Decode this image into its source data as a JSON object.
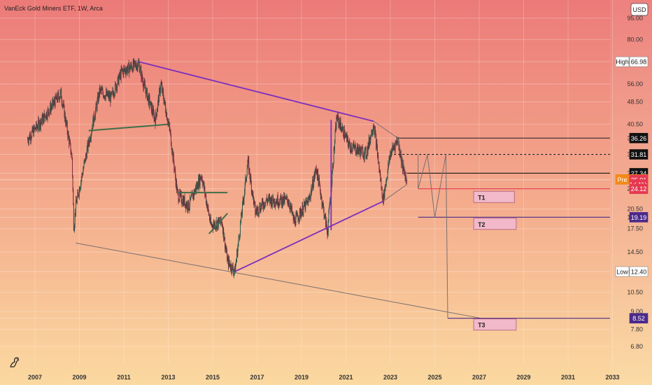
{
  "title": "VanEck Gold Miners ETF, 1W, Arca",
  "currency_button": "USD",
  "colors": {
    "bg_top": "#ec7a78",
    "bg_bottom": "#fbd9a0",
    "pattern_line": "#7b2fbe",
    "support_line": "#3f6f4a",
    "guide_line": "#7a6f6f",
    "candle_up": "#2c5a4a",
    "candle_down": "#7a2a3a",
    "price_red": "#e53950",
    "target_box": "#f1b9c9",
    "target_border": "#b05a7a",
    "target_text": "#4a1a6a"
  },
  "logo_icon": "tradingview-logo-icon",
  "chart_data": {
    "type": "candlestick",
    "title": "VanEck Gold Miners ETF, 1W, Arca",
    "x_ticks": [
      "2007",
      "2009",
      "2011",
      "2013",
      "2015",
      "2017",
      "2019",
      "2021",
      "2023",
      "2025",
      "2027",
      "2029",
      "2031",
      "2033"
    ],
    "y_scale": "log",
    "y_ticks": [
      "95.00",
      "80.00",
      "66.98",
      "56.00",
      "48.50",
      "40.50",
      "36.26",
      "31.81",
      "27.34",
      "26.01",
      "25.91",
      "24.12",
      "20.50",
      "19.19",
      "17.50",
      "14.50",
      "12.40",
      "10.50",
      "9.00",
      "8.52",
      "7.80",
      "6.80"
    ],
    "y_range": [
      5.9,
      110
    ],
    "price_labels": [
      {
        "label": "High",
        "value": "66.98",
        "price": 66.98,
        "style": "white"
      },
      {
        "label": "",
        "value": "36.26",
        "price": 36.26,
        "style": "black"
      },
      {
        "label": "",
        "value": "31.81",
        "price": 31.81,
        "style": "black"
      },
      {
        "label": "",
        "value": "27.34",
        "price": 27.34,
        "style": "black"
      },
      {
        "label": "Pre",
        "value": "26.01",
        "price": 26.01,
        "style": "orange"
      },
      {
        "label": "",
        "value": "25.91",
        "price": 25.91,
        "style": "red"
      },
      {
        "label": "",
        "value": "1d 11h",
        "price": 24.95,
        "style": "red"
      },
      {
        "label": "",
        "value": "24.12",
        "price": 24.12,
        "style": "red"
      },
      {
        "label": "",
        "value": "19.19",
        "price": 19.19,
        "style": "purple"
      },
      {
        "label": "Low",
        "value": "12.40",
        "price": 12.4,
        "style": "white"
      },
      {
        "label": "",
        "value": "8.52",
        "price": 8.52,
        "style": "purple"
      }
    ],
    "price_anchors": [
      {
        "date": "2006-09",
        "close": 36
      },
      {
        "date": "2007-06",
        "close": 43
      },
      {
        "date": "2008-03",
        "close": 52
      },
      {
        "date": "2008-09",
        "close": 31
      },
      {
        "date": "2008-10",
        "close": 17.5
      },
      {
        "date": "2008-11",
        "close": 21
      },
      {
        "date": "2009-06",
        "close": 35
      },
      {
        "date": "2009-12",
        "close": 53
      },
      {
        "date": "2010-06",
        "close": 50
      },
      {
        "date": "2010-12",
        "close": 62
      },
      {
        "date": "2011-09",
        "close": 66
      },
      {
        "date": "2011-12",
        "close": 55
      },
      {
        "date": "2012-06",
        "close": 42
      },
      {
        "date": "2012-09",
        "close": 56
      },
      {
        "date": "2013-02",
        "close": 38
      },
      {
        "date": "2013-06",
        "close": 23
      },
      {
        "date": "2013-12",
        "close": 21
      },
      {
        "date": "2014-07",
        "close": 27
      },
      {
        "date": "2014-12",
        "close": 18
      },
      {
        "date": "2015-06",
        "close": 18.5
      },
      {
        "date": "2015-09",
        "close": 13.5
      },
      {
        "date": "2016-01",
        "close": 12.4
      },
      {
        "date": "2016-08",
        "close": 30
      },
      {
        "date": "2016-12",
        "close": 20
      },
      {
        "date": "2017-06",
        "close": 22
      },
      {
        "date": "2018-06",
        "close": 22
      },
      {
        "date": "2018-09",
        "close": 18.5
      },
      {
        "date": "2019-05",
        "close": 22
      },
      {
        "date": "2019-09",
        "close": 28.5
      },
      {
        "date": "2020-03",
        "close": 17
      },
      {
        "date": "2020-08",
        "close": 43
      },
      {
        "date": "2021-03",
        "close": 34
      },
      {
        "date": "2021-12",
        "close": 32
      },
      {
        "date": "2022-04",
        "close": 41
      },
      {
        "date": "2022-09",
        "close": 22
      },
      {
        "date": "2023-01",
        "close": 32
      },
      {
        "date": "2023-05",
        "close": 36
      },
      {
        "date": "2023-08",
        "close": 28
      },
      {
        "date": "2023-10",
        "close": 25.9
      }
    ],
    "trend_lines": [
      {
        "name": "upper-wedge-line",
        "style": "pattern",
        "from": {
          "date": "2011-09",
          "price": 66.98
        },
        "to": {
          "date": "2022-04",
          "price": 41.5
        }
      },
      {
        "name": "lower-wedge-line",
        "style": "pattern",
        "from": {
          "date": "2016-01",
          "price": 12.4
        },
        "to": {
          "date": "2022-09",
          "price": 21.8
        }
      },
      {
        "name": "mid-wedge-line",
        "style": "pattern",
        "from": {
          "date": "2020-05",
          "price": 17.3
        },
        "to": {
          "date": "2020-05",
          "price": 42
        }
      },
      {
        "name": "support-line-2010",
        "style": "support",
        "from": {
          "date": "2009-06",
          "price": 38.5
        },
        "to": {
          "date": "2013-01",
          "price": 40.5
        }
      },
      {
        "name": "support-line-2013",
        "style": "support",
        "from": {
          "date": "2013-06",
          "price": 23.4
        },
        "to": {
          "date": "2015-09",
          "price": 23.4
        }
      },
      {
        "name": "support-line-2015",
        "style": "support",
        "from": {
          "date": "2014-11",
          "price": 16.8
        },
        "to": {
          "date": "2015-09",
          "price": 19.8
        }
      },
      {
        "name": "long-support-line",
        "style": "guide",
        "from": {
          "date": "2008-11",
          "price": 15.6
        },
        "to": {
          "date": "2027-02",
          "price": 8.52
        }
      },
      {
        "name": "connector-line-1",
        "style": "guide",
        "from": {
          "date": "2022-04",
          "price": 41.5
        },
        "to": {
          "date": "2023-05",
          "price": 36.26
        }
      },
      {
        "name": "connector-line-2",
        "style": "guide",
        "from": {
          "date": "2022-09",
          "price": 21.8
        },
        "to": {
          "date": "2023-10",
          "price": 25.0
        }
      },
      {
        "name": "wedge-tip-line",
        "style": "guide",
        "from": {
          "date": "2023-05",
          "price": 36.26
        },
        "to": {
          "date": "2023-10",
          "price": 26.0
        }
      }
    ],
    "horizontal_levels": [
      {
        "name": "level-36-26",
        "price": 36.26,
        "from": "2023-05",
        "color": "#1a1a1a",
        "dashed": false
      },
      {
        "name": "level-31-81",
        "price": 31.81,
        "from": "2023-03",
        "color": "#1a1a1a",
        "dashed": true
      },
      {
        "name": "level-27-34",
        "price": 27.34,
        "from": "2023-10",
        "color": "#1a1a1a",
        "dashed": false
      },
      {
        "name": "level-24-12",
        "price": 24.12,
        "from": "2024-04",
        "color": "#e53950",
        "dashed": false
      },
      {
        "name": "level-19-19",
        "price": 19.19,
        "from": "2024-04",
        "color": "#4b2a8a",
        "dashed": false
      },
      {
        "name": "level-8-52",
        "price": 8.52,
        "from": "2025-08",
        "color": "#4b2a8a",
        "dashed": false
      }
    ],
    "projection_path": [
      {
        "date": "2024-04",
        "price": 31.81
      },
      {
        "date": "2024-04",
        "price": 24.12
      },
      {
        "date": "2024-09",
        "price": 31.81
      },
      {
        "date": "2025-01",
        "price": 19.19
      },
      {
        "date": "2025-07",
        "price": 31.81
      },
      {
        "date": "2025-08",
        "price": 8.52
      }
    ],
    "targets": [
      {
        "label": "T1",
        "price": 22.6,
        "from": "2026-10",
        "to": "2028-08"
      },
      {
        "label": "T2",
        "price": 18.2,
        "from": "2026-10",
        "to": "2028-09"
      },
      {
        "label": "T3",
        "price": 8.1,
        "from": "2026-10",
        "to": "2028-09"
      }
    ]
  }
}
